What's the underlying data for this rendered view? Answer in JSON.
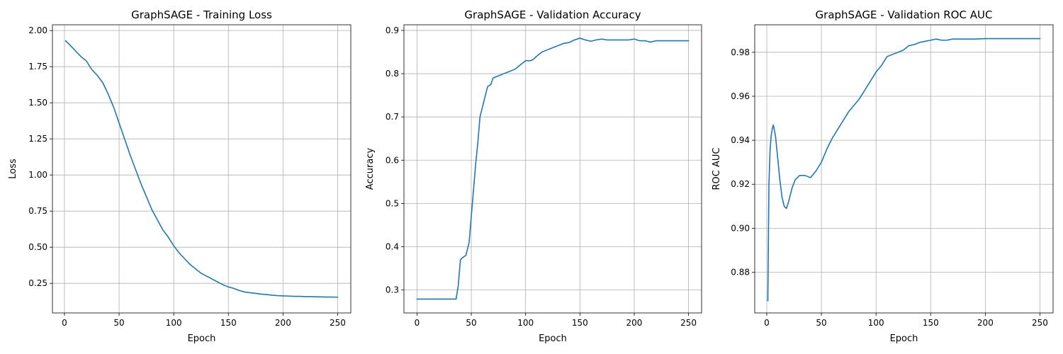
{
  "colors": {
    "series": "#1f77b4",
    "grid": "#b0b0b0"
  },
  "chart_data": [
    {
      "type": "line",
      "title": "GraphSAGE - Training Loss",
      "xlabel": "Epoch",
      "ylabel": "Loss",
      "xlim": [
        -11,
        262
      ],
      "ylim": [
        0.045,
        2.04
      ],
      "xticks": [
        0,
        50,
        100,
        150,
        200,
        250
      ],
      "yticks": [
        0.25,
        0.5,
        0.75,
        1.0,
        1.25,
        1.5,
        1.75,
        2.0
      ],
      "ytick_labels": [
        "0.25",
        "0.50",
        "0.75",
        "1.00",
        "1.25",
        "1.50",
        "1.75",
        "2.00"
      ],
      "grid": true,
      "series": [
        {
          "x": [
            1,
            5,
            10,
            15,
            20,
            25,
            30,
            35,
            40,
            45,
            50,
            55,
            60,
            65,
            70,
            75,
            80,
            85,
            90,
            95,
            100,
            105,
            110,
            115,
            120,
            125,
            130,
            135,
            140,
            145,
            150,
            155,
            160,
            165,
            170,
            175,
            180,
            185,
            190,
            195,
            200,
            205,
            210,
            215,
            220,
            225,
            230,
            235,
            240,
            245,
            250
          ],
          "y": [
            1.93,
            1.9,
            1.86,
            1.82,
            1.79,
            1.73,
            1.69,
            1.64,
            1.56,
            1.47,
            1.36,
            1.25,
            1.14,
            1.04,
            0.94,
            0.85,
            0.76,
            0.69,
            0.62,
            0.57,
            0.51,
            0.46,
            0.42,
            0.38,
            0.35,
            0.32,
            0.3,
            0.28,
            0.26,
            0.24,
            0.225,
            0.215,
            0.2,
            0.19,
            0.185,
            0.18,
            0.175,
            0.172,
            0.168,
            0.165,
            0.163,
            0.162,
            0.16,
            0.16,
            0.158,
            0.158,
            0.157,
            0.156,
            0.155,
            0.155,
            0.154
          ]
        }
      ]
    },
    {
      "type": "line",
      "title": "GraphSAGE - Validation Accuracy",
      "xlabel": "Epoch",
      "ylabel": "Accuracy",
      "xlim": [
        -12,
        262
      ],
      "ylim": [
        0.247,
        0.913
      ],
      "xticks": [
        0,
        50,
        100,
        150,
        200,
        250
      ],
      "yticks": [
        0.3,
        0.4,
        0.5,
        0.6,
        0.7,
        0.8,
        0.9
      ],
      "ytick_labels": [
        "0.3",
        "0.4",
        "0.5",
        "0.6",
        "0.7",
        "0.8",
        "0.9"
      ],
      "grid": true,
      "series": [
        {
          "x": [
            0,
            10,
            20,
            30,
            36,
            38,
            40,
            42,
            45,
            47,
            48,
            50,
            52,
            54,
            56,
            58,
            60,
            62,
            65,
            68,
            70,
            75,
            80,
            85,
            90,
            95,
            100,
            105,
            108,
            110,
            115,
            120,
            125,
            130,
            135,
            140,
            145,
            150,
            155,
            160,
            165,
            170,
            175,
            180,
            185,
            190,
            195,
            200,
            205,
            210,
            215,
            220,
            225,
            230,
            240,
            250
          ],
          "y": [
            0.279,
            0.279,
            0.279,
            0.279,
            0.279,
            0.31,
            0.37,
            0.375,
            0.38,
            0.4,
            0.41,
            0.47,
            0.53,
            0.59,
            0.64,
            0.7,
            0.72,
            0.74,
            0.77,
            0.775,
            0.79,
            0.795,
            0.8,
            0.805,
            0.81,
            0.82,
            0.83,
            0.83,
            0.835,
            0.84,
            0.85,
            0.855,
            0.86,
            0.865,
            0.87,
            0.872,
            0.878,
            0.882,
            0.878,
            0.875,
            0.878,
            0.88,
            0.878,
            0.878,
            0.878,
            0.878,
            0.878,
            0.88,
            0.876,
            0.876,
            0.873,
            0.876,
            0.876,
            0.876,
            0.876,
            0.876
          ]
        }
      ]
    },
    {
      "type": "line",
      "title": "GraphSAGE - Validation ROC AUC",
      "xlabel": "Epoch",
      "ylabel": "ROC AUC",
      "xlim": [
        -11,
        262
      ],
      "ylim": [
        0.8615,
        0.9925
      ],
      "xticks": [
        0,
        50,
        100,
        150,
        200,
        250
      ],
      "yticks": [
        0.88,
        0.9,
        0.92,
        0.94,
        0.96,
        0.98
      ],
      "ytick_labels": [
        "0.88",
        "0.90",
        "0.92",
        "0.94",
        "0.96",
        "0.98"
      ],
      "grid": true,
      "series": [
        {
          "x": [
            1,
            2,
            3,
            4,
            5,
            6,
            8,
            10,
            12,
            14,
            16,
            18,
            20,
            23,
            26,
            30,
            35,
            40,
            45,
            50,
            55,
            60,
            65,
            70,
            75,
            80,
            85,
            90,
            95,
            100,
            105,
            110,
            115,
            120,
            125,
            130,
            135,
            140,
            145,
            150,
            155,
            160,
            165,
            170,
            175,
            180,
            185,
            190,
            200,
            210,
            220,
            230,
            240,
            250
          ],
          "y": [
            0.867,
            0.92,
            0.935,
            0.942,
            0.945,
            0.947,
            0.942,
            0.932,
            0.922,
            0.914,
            0.91,
            0.909,
            0.912,
            0.918,
            0.922,
            0.924,
            0.924,
            0.923,
            0.926,
            0.93,
            0.936,
            0.941,
            0.945,
            0.949,
            0.953,
            0.956,
            0.959,
            0.963,
            0.967,
            0.971,
            0.974,
            0.978,
            0.979,
            0.98,
            0.981,
            0.983,
            0.9835,
            0.9845,
            0.985,
            0.9855,
            0.986,
            0.9855,
            0.9855,
            0.986,
            0.986,
            0.986,
            0.986,
            0.986,
            0.9862,
            0.9862,
            0.9862,
            0.9862,
            0.9862,
            0.9862
          ]
        }
      ]
    }
  ]
}
